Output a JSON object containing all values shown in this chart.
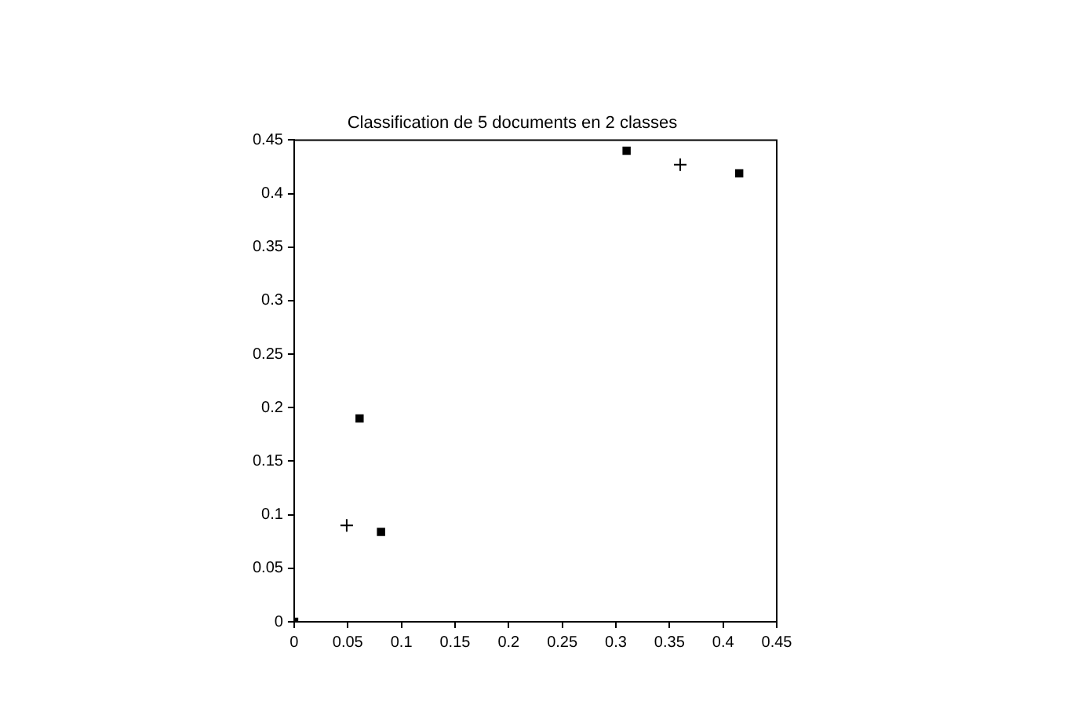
{
  "chart_data": {
    "type": "scatter",
    "title": "Classification de 5 documents en 2 classes",
    "xlim": [
      0,
      0.45
    ],
    "ylim": [
      0,
      0.45
    ],
    "xticks": [
      0,
      0.05,
      0.1,
      0.15,
      0.2,
      0.25,
      0.3,
      0.35,
      0.4,
      0.45
    ],
    "yticks": [
      0,
      0.05,
      0.1,
      0.15,
      0.2,
      0.25,
      0.3,
      0.35,
      0.4,
      0.45
    ],
    "grid": false,
    "legend": false,
    "series": [
      {
        "color": "#000000",
        "marker": "square",
        "x": [
          0,
          0.061,
          0.081,
          0.31,
          0.415
        ],
        "values": [
          0,
          0.19,
          0.084,
          0.44,
          0.419
        ]
      },
      {
        "color": "#000000",
        "marker": "cross",
        "x": [
          0.049,
          0.36
        ],
        "values": [
          0.09,
          0.427
        ]
      }
    ]
  }
}
